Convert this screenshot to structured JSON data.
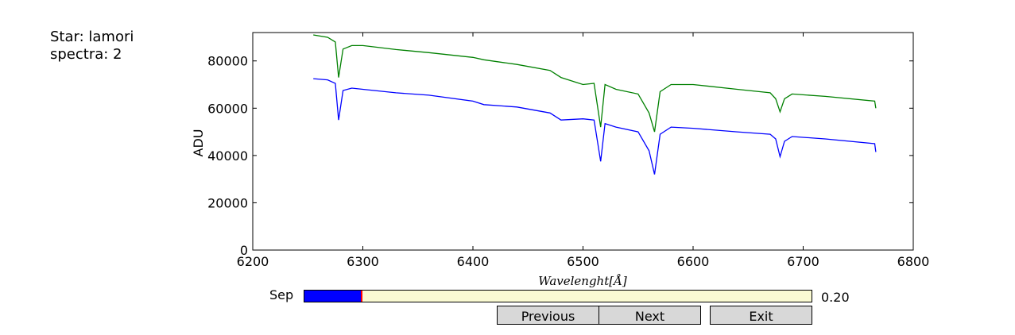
{
  "star_label": "Star: lamori",
  "spectra_label": "spectra: 2",
  "slider": {
    "label": "Sep",
    "value": 0.2,
    "display": "0.20",
    "min": 0,
    "max": 1,
    "fill_color": "#0000ff",
    "handle_color": "#ff0000",
    "track_color": "#fafad2"
  },
  "buttons": {
    "previous": "Previous",
    "next": "Next",
    "exit": "Exit"
  },
  "chart_data": {
    "type": "line",
    "title": "",
    "xlabel": "Wavelenght[Å]",
    "ylabel": "ADU",
    "xlim": [
      6200,
      6800
    ],
    "ylim": [
      0,
      92000
    ],
    "xticks": [
      6200,
      6300,
      6400,
      6500,
      6600,
      6700,
      6800
    ],
    "yticks": [
      0,
      20000,
      40000,
      60000,
      80000
    ],
    "grid": false,
    "series": [
      {
        "color": "#008000",
        "x": [
          6255,
          6268,
          6275,
          6278,
          6282,
          6290,
          6300,
          6330,
          6360,
          6400,
          6410,
          6440,
          6470,
          6480,
          6500,
          6510,
          6516,
          6520,
          6530,
          6550,
          6560,
          6565,
          6570,
          6580,
          6600,
          6640,
          6670,
          6675,
          6679,
          6683,
          6690,
          6720,
          6765,
          6766
        ],
        "y": [
          91000,
          90000,
          88000,
          73000,
          85000,
          86500,
          86500,
          84800,
          83500,
          81500,
          80500,
          78500,
          76000,
          73000,
          70000,
          70500,
          52000,
          70000,
          68000,
          66000,
          58000,
          50000,
          67000,
          70000,
          70000,
          68000,
          66500,
          64000,
          58500,
          64000,
          66000,
          65000,
          63000,
          60000
        ]
      },
      {
        "color": "#0000ff",
        "x": [
          6255,
          6268,
          6275,
          6278,
          6282,
          6290,
          6300,
          6330,
          6360,
          6400,
          6410,
          6440,
          6470,
          6480,
          6500,
          6510,
          6516,
          6520,
          6530,
          6550,
          6560,
          6565,
          6570,
          6580,
          6600,
          6640,
          6670,
          6675,
          6679,
          6683,
          6690,
          6720,
          6765,
          6766
        ],
        "y": [
          72500,
          72000,
          70500,
          55000,
          67500,
          68500,
          68000,
          66500,
          65500,
          63000,
          61500,
          60500,
          58000,
          55000,
          55500,
          55000,
          37500,
          53500,
          52000,
          50000,
          42000,
          32000,
          49000,
          52000,
          51500,
          50000,
          49000,
          47000,
          39500,
          46000,
          48000,
          47000,
          45000,
          41500
        ]
      }
    ]
  }
}
